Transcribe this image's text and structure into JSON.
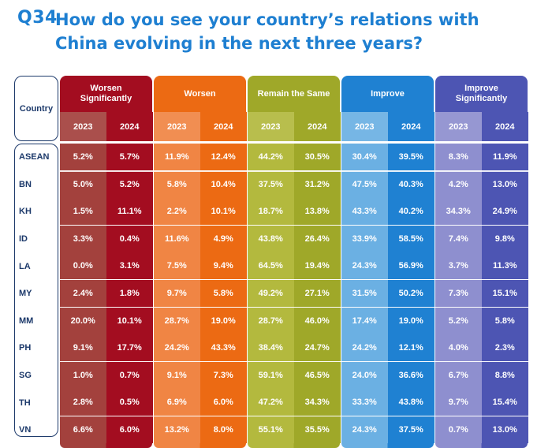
{
  "title": {
    "number": "Q34",
    "text": "How do you see your country’s relations with China evolving in the next three years?"
  },
  "chart_data": {
    "type": "table",
    "country_header": "Country",
    "years": [
      "2023",
      "2024"
    ],
    "categories": [
      {
        "name": "Worsen Significantly",
        "colors": [
          "#a3413d",
          "#a30d20"
        ]
      },
      {
        "name": "Worsen",
        "colors": [
          "#f08544",
          "#ec6a13"
        ]
      },
      {
        "name": "Remain the Same",
        "colors": [
          "#b3b93e",
          "#9fa829"
        ]
      },
      {
        "name": "Improve",
        "colors": [
          "#6bb0e3",
          "#1f81d2"
        ]
      },
      {
        "name": "Improve Significantly",
        "colors": [
          "#8e8fcf",
          "#4d55b3"
        ]
      }
    ],
    "rows": [
      {
        "country": "ASEAN",
        "values": [
          "5.2%",
          "5.7%",
          "11.9%",
          "12.4%",
          "44.2%",
          "30.5%",
          "30.4%",
          "39.5%",
          "8.3%",
          "11.9%"
        ]
      },
      {
        "country": "BN",
        "values": [
          "5.0%",
          "5.2%",
          "5.8%",
          "10.4%",
          "37.5%",
          "31.2%",
          "47.5%",
          "40.3%",
          "4.2%",
          "13.0%"
        ]
      },
      {
        "country": "KH",
        "values": [
          "1.5%",
          "11.1%",
          "2.2%",
          "10.1%",
          "18.7%",
          "13.8%",
          "43.3%",
          "40.2%",
          "34.3%",
          "24.9%"
        ]
      },
      {
        "country": "ID",
        "values": [
          "3.3%",
          "0.4%",
          "11.6%",
          "4.9%",
          "43.8%",
          "26.4%",
          "33.9%",
          "58.5%",
          "7.4%",
          "9.8%"
        ]
      },
      {
        "country": "LA",
        "values": [
          "0.0%",
          "3.1%",
          "7.5%",
          "9.4%",
          "64.5%",
          "19.4%",
          "24.3%",
          "56.9%",
          "3.7%",
          "11.3%"
        ]
      },
      {
        "country": "MY",
        "values": [
          "2.4%",
          "1.8%",
          "9.7%",
          "5.8%",
          "49.2%",
          "27.1%",
          "31.5%",
          "50.2%",
          "7.3%",
          "15.1%"
        ]
      },
      {
        "country": "MM",
        "values": [
          "20.0%",
          "10.1%",
          "28.7%",
          "19.0%",
          "28.7%",
          "46.0%",
          "17.4%",
          "19.0%",
          "5.2%",
          "5.8%"
        ]
      },
      {
        "country": "PH",
        "values": [
          "9.1%",
          "17.7%",
          "24.2%",
          "43.3%",
          "38.4%",
          "24.7%",
          "24.2%",
          "12.1%",
          "4.0%",
          "2.3%"
        ]
      },
      {
        "country": "SG",
        "values": [
          "1.0%",
          "0.7%",
          "9.1%",
          "7.3%",
          "59.1%",
          "46.5%",
          "24.0%",
          "36.6%",
          "6.7%",
          "8.8%"
        ]
      },
      {
        "country": "TH",
        "values": [
          "2.8%",
          "0.5%",
          "6.9%",
          "6.0%",
          "47.2%",
          "34.3%",
          "33.3%",
          "43.8%",
          "9.7%",
          "15.4%"
        ]
      },
      {
        "country": "VN",
        "values": [
          "6.6%",
          "6.0%",
          "13.2%",
          "8.0%",
          "55.1%",
          "35.5%",
          "24.3%",
          "37.5%",
          "0.7%",
          "13.0%"
        ]
      }
    ]
  }
}
